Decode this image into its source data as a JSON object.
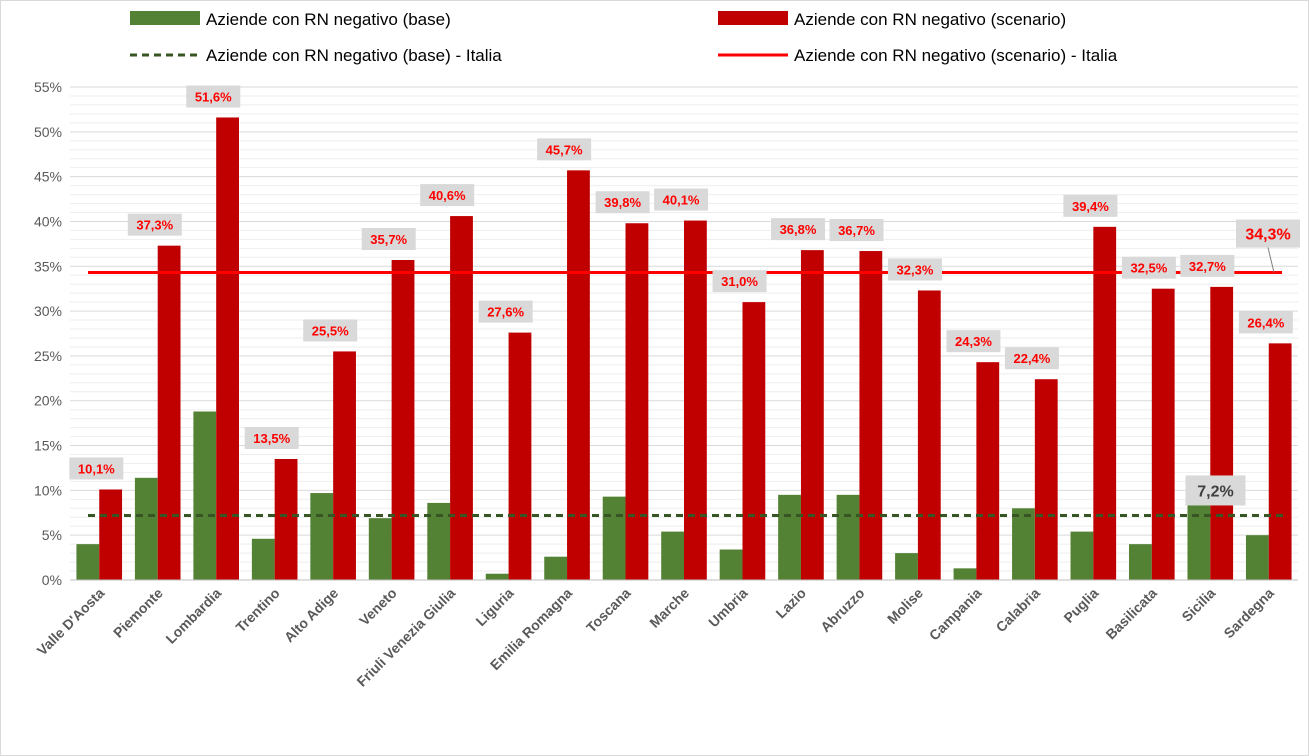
{
  "chart_data": {
    "type": "bar",
    "title": "",
    "xlabel": "",
    "ylabel": "",
    "ylim": [
      0,
      0.55
    ],
    "yticks": [
      0,
      0.05,
      0.1,
      0.15,
      0.2,
      0.25,
      0.3,
      0.35,
      0.4,
      0.45,
      0.5,
      0.55
    ],
    "ytick_labels": [
      "0%",
      "5%",
      "10%",
      "15%",
      "20%",
      "25%",
      "30%",
      "35%",
      "40%",
      "45%",
      "50%",
      "55%"
    ],
    "grid": true,
    "legend_position": "top",
    "categories": [
      "Valle D'Aosta",
      "Piemonte",
      "Lombardia",
      "Trentino",
      "Alto Adige",
      "Veneto",
      "Friuli Venezia Giulia",
      "Liguria",
      "Emilia Romagna",
      "Toscana",
      "Marche",
      "Umbria",
      "Lazio",
      "Abruzzo",
      "Molise",
      "Campania",
      "Calabria",
      "Puglia",
      "Basilicata",
      "Sicilia",
      "Sardegna"
    ],
    "series": [
      {
        "name": "Aziende con RN negativo (base)",
        "kind": "bar",
        "color": "#548235",
        "values": [
          0.04,
          0.114,
          0.188,
          0.046,
          0.097,
          0.069,
          0.086,
          0.007,
          0.026,
          0.093,
          0.054,
          0.034,
          0.095,
          0.095,
          0.03,
          0.013,
          0.08,
          0.054,
          0.04,
          0.115,
          0.05
        ]
      },
      {
        "name": "Aziende con RN negativo (scenario)",
        "kind": "bar",
        "color": "#c00000",
        "values": [
          0.101,
          0.373,
          0.516,
          0.135,
          0.255,
          0.357,
          0.406,
          0.276,
          0.457,
          0.398,
          0.401,
          0.31,
          0.368,
          0.367,
          0.323,
          0.243,
          0.224,
          0.394,
          0.325,
          0.327,
          0.264
        ],
        "data_labels": [
          "10,1%",
          "37,3%",
          "51,6%",
          "13,5%",
          "25,5%",
          "35,7%",
          "40,6%",
          "27,6%",
          "45,7%",
          "39,8%",
          "40,1%",
          "31,0%",
          "36,8%",
          "36,7%",
          "32,3%",
          "24,3%",
          "22,4%",
          "39,4%",
          "32,5%",
          "32,7%",
          "26,4%"
        ]
      },
      {
        "name": "Aziende con RN negativo (base) - Italia",
        "kind": "line",
        "style": "dashed",
        "color": "#375623",
        "value": 0.072,
        "label": "7,2%"
      },
      {
        "name": "Aziende con RN negativo (scenario) - Italia",
        "kind": "line",
        "style": "solid",
        "color": "#ff0000",
        "value": 0.343,
        "label": "34,3%"
      }
    ],
    "colors": {
      "label_box": "#d9d9d9",
      "grid": "#d9d9d9",
      "axis": "#bfbfbf"
    }
  }
}
